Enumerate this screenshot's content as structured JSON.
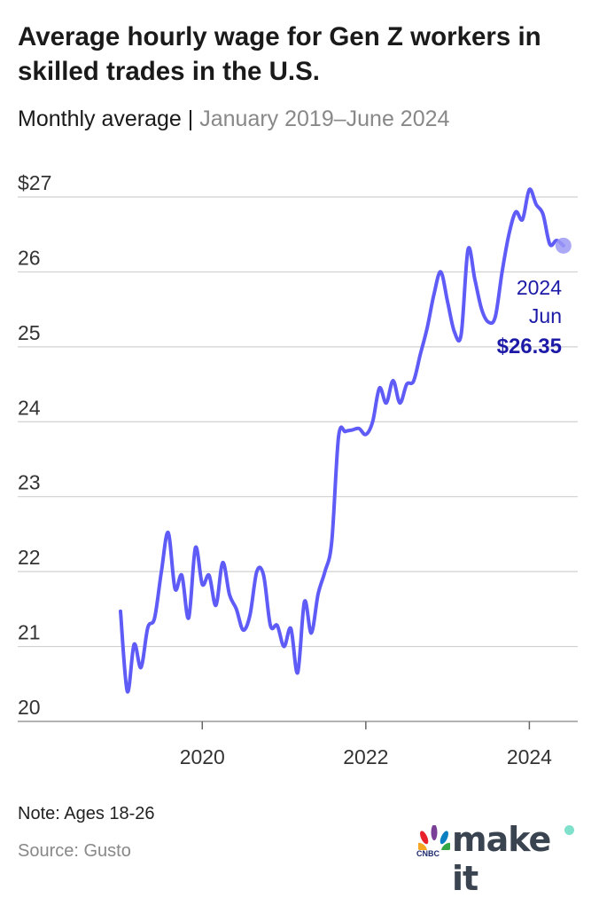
{
  "title": "Average hourly wage for Gen Z workers in skilled trades in the U.S.",
  "subtitle": {
    "main": "Monthly average",
    "separator": "|",
    "range": "January 2019–June 2024"
  },
  "note": "Note: Ages 18-26",
  "source": "Source: Gusto",
  "logo": {
    "brand": "make it",
    "network": "CNBC"
  },
  "colors": {
    "line": "#5f5bf7",
    "annotation": "#1c1aa6",
    "dot": "#9c99f5",
    "grid": "#d0d0d0",
    "axis": "#999999"
  },
  "chart_data": {
    "type": "line",
    "title": "Average hourly wage for Gen Z workers in skilled trades in the U.S.",
    "xlabel": "",
    "ylabel": "",
    "start": "2019-01",
    "frequency": "monthly",
    "ylim": [
      20,
      27
    ],
    "yticks": [
      20,
      21,
      22,
      23,
      24,
      25,
      26,
      27
    ],
    "ytick_labels": [
      "20",
      "21",
      "22",
      "23",
      "24",
      "25",
      "26",
      "$27"
    ],
    "xticks": [
      2020,
      2022,
      2024
    ],
    "xtick_labels": [
      "2020",
      "2022",
      "2024"
    ],
    "grid": "horizontal",
    "values": [
      21.47,
      20.4,
      21.03,
      20.72,
      21.25,
      21.38,
      22.0,
      22.52,
      21.77,
      21.95,
      21.38,
      22.32,
      21.83,
      21.95,
      21.55,
      22.12,
      21.69,
      21.5,
      21.22,
      21.42,
      22.0,
      21.95,
      21.28,
      21.28,
      21.0,
      21.24,
      20.65,
      21.6,
      21.18,
      21.7,
      22.0,
      22.4,
      23.8,
      23.87,
      23.89,
      23.91,
      23.83,
      24.0,
      24.45,
      24.25,
      24.55,
      24.25,
      24.5,
      24.54,
      24.9,
      25.25,
      25.7,
      26.0,
      25.6,
      25.2,
      25.17,
      26.3,
      25.9,
      25.5,
      25.33,
      25.4,
      26.0,
      26.5,
      26.8,
      26.7,
      27.1,
      26.9,
      26.77,
      26.37,
      26.42,
      26.35
    ],
    "annotation": {
      "year": "2024",
      "month": "Jun",
      "value": "$26.35"
    }
  }
}
